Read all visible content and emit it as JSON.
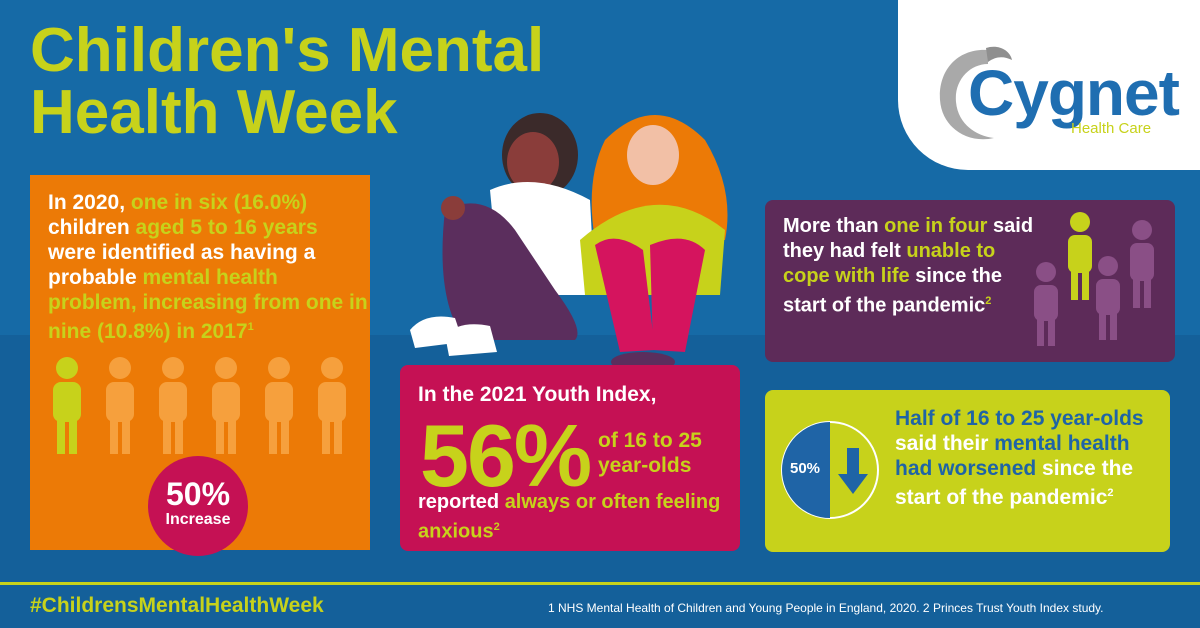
{
  "header": {
    "title_line1": "Children's Mental",
    "title_line2": "Health Week"
  },
  "logo": {
    "name": "Cygnet",
    "tagline": "Health Care"
  },
  "orange_panel": {
    "t1": "In 2020, ",
    "t2": "one in six (16.0%)",
    "t3": " children ",
    "t4": "aged 5 to 16 years",
    "t5": " were identified as having a probable ",
    "t6": "mental health problem, increasing from one in nine (10.8%) in 2017",
    "sup": "1",
    "badge_value": "50%",
    "badge_label": "Increase"
  },
  "pink_panel": {
    "intro": "In the 2021 Youth Index,",
    "big_value": "56%",
    "mid_text": "of 16 to 25 year-olds",
    "t1": "reported ",
    "t2": "always or often feeling anxious",
    "sup": "2"
  },
  "purple_panel": {
    "t1": "More than ",
    "t2": "one in four",
    "t3": " said they had felt ",
    "t4": "unable to cope with life",
    "t5": " since the start of the pandemic",
    "sup": "2"
  },
  "lime_panel": {
    "pie_label": "50%",
    "t1": "Half of 16 to 25 year-olds",
    "t2": " said their ",
    "t3": "mental health had worsened",
    "t4": " since the start of the pandemic",
    "sup": "2"
  },
  "footer": {
    "hashtag": "#ChildrensMentalHealthWeek",
    "footnote": "1 NHS Mental Health of Children and Young People in England, 2020. 2 Princes Trust Youth Index study."
  },
  "colors": {
    "blue": "#166aa6",
    "lime": "#c7d21b",
    "orange": "#ec7a06",
    "pink": "#c51154",
    "purple": "#5d2b59"
  }
}
